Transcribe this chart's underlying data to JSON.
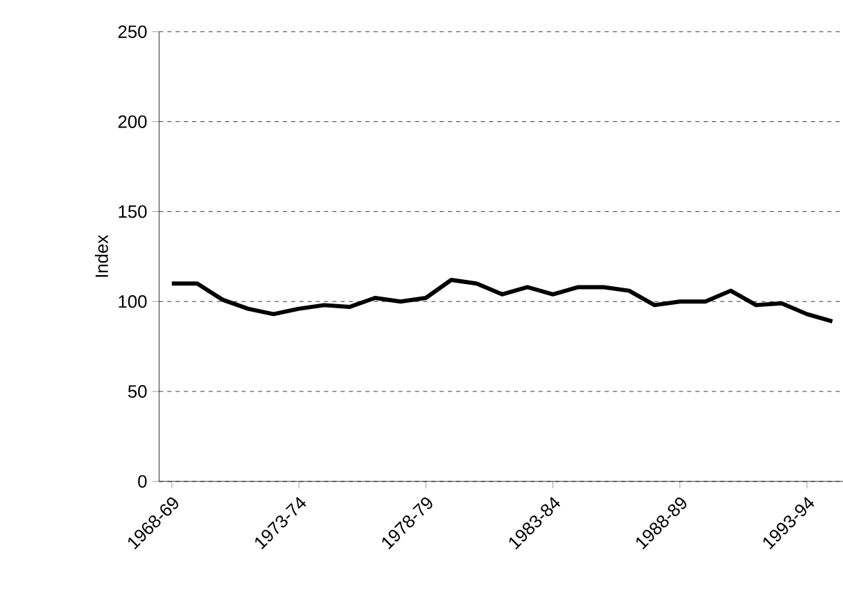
{
  "chart_data": {
    "type": "line",
    "ylabel": "Index",
    "categories": [
      "1968-69",
      null,
      null,
      null,
      null,
      "1973-74",
      null,
      null,
      null,
      null,
      "1978-79",
      null,
      null,
      null,
      null,
      "1983-84",
      null,
      null,
      null,
      null,
      "1988-89",
      null,
      null,
      null,
      null,
      "1993-94",
      null
    ],
    "series": [
      {
        "color": "#000000",
        "values": [
          110,
          110,
          101,
          96,
          93,
          96,
          98,
          97,
          102,
          100,
          102,
          112,
          110,
          104,
          108,
          104,
          108,
          108,
          106,
          98,
          100,
          100,
          106,
          98,
          99,
          93,
          89
        ]
      }
    ],
    "ylim": [
      0,
      250
    ],
    "yticks": [
      0,
      50,
      100,
      150,
      200,
      250
    ],
    "grid": "y",
    "marker": "none",
    "line_style": "solid"
  }
}
